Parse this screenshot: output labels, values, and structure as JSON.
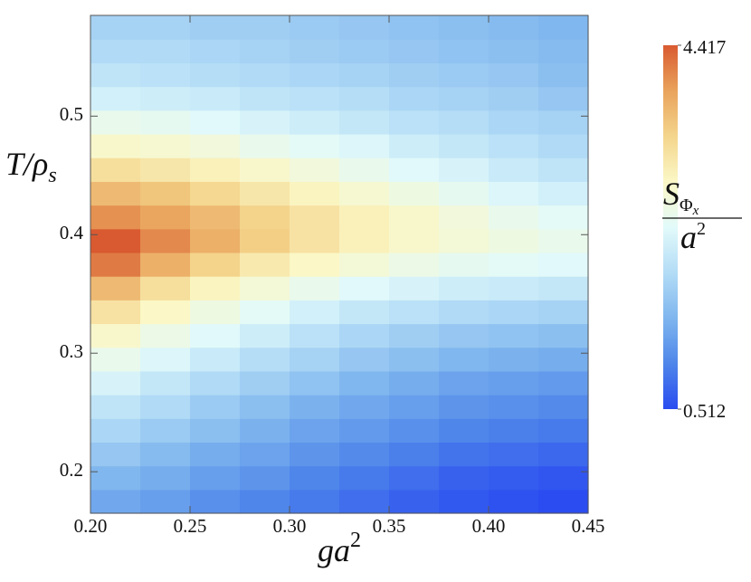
{
  "chart_data": {
    "type": "heatmap",
    "x_label": {
      "base": "ga",
      "sup": "2"
    },
    "y_label": {
      "base": "T/ρ",
      "sub": "s"
    },
    "colorbar_label": {
      "numerator": {
        "base": "S",
        "sub": "Φ",
        "subsub": "x"
      },
      "denominator": {
        "base": "a",
        "sup": "2"
      }
    },
    "xbins": [
      0.2,
      0.225,
      0.25,
      0.275,
      0.3,
      0.325,
      0.35,
      0.375,
      0.4,
      0.425,
      0.45
    ],
    "ybins": [
      0.165,
      0.185,
      0.205,
      0.225,
      0.245,
      0.265,
      0.285,
      0.305,
      0.325,
      0.345,
      0.365,
      0.385,
      0.405,
      0.425,
      0.445,
      0.465,
      0.485,
      0.505,
      0.525,
      0.545,
      0.565,
      0.585
    ],
    "z": [
      [
        1.35,
        1.25,
        1.1,
        1.0,
        0.9,
        0.8,
        0.7,
        0.62,
        0.56,
        0.512
      ],
      [
        1.5,
        1.4,
        1.25,
        1.15,
        1.0,
        0.9,
        0.8,
        0.7,
        0.65,
        0.6
      ],
      [
        1.7,
        1.55,
        1.4,
        1.3,
        1.15,
        1.05,
        0.95,
        0.85,
        0.8,
        0.75
      ],
      [
        1.9,
        1.75,
        1.6,
        1.45,
        1.3,
        1.2,
        1.1,
        1.0,
        0.95,
        0.9
      ],
      [
        2.1,
        1.95,
        1.75,
        1.6,
        1.45,
        1.35,
        1.25,
        1.15,
        1.1,
        1.05
      ],
      [
        2.35,
        2.15,
        1.95,
        1.8,
        1.65,
        1.5,
        1.4,
        1.3,
        1.25,
        1.2
      ],
      [
        2.6,
        2.4,
        2.2,
        2.0,
        1.85,
        1.7,
        1.6,
        1.5,
        1.45,
        1.4
      ],
      [
        2.9,
        2.65,
        2.45,
        2.25,
        2.05,
        1.9,
        1.8,
        1.7,
        1.65,
        1.6
      ],
      [
        3.25,
        2.95,
        2.7,
        2.5,
        2.3,
        2.15,
        2.05,
        1.95,
        1.9,
        1.85
      ],
      [
        3.7,
        3.3,
        3.0,
        2.8,
        2.6,
        2.45,
        2.35,
        2.25,
        2.2,
        2.15
      ],
      [
        4.2,
        3.8,
        3.45,
        3.15,
        2.95,
        2.8,
        2.65,
        2.55,
        2.5,
        2.45
      ],
      [
        4.417,
        4.1,
        3.8,
        3.5,
        3.25,
        3.05,
        2.9,
        2.8,
        2.7,
        2.6
      ],
      [
        4.05,
        3.9,
        3.7,
        3.45,
        3.25,
        3.05,
        2.9,
        2.75,
        2.6,
        2.5
      ],
      [
        3.7,
        3.6,
        3.4,
        3.2,
        3.0,
        2.85,
        2.7,
        2.55,
        2.4,
        2.3
      ],
      [
        3.3,
        3.2,
        3.05,
        2.9,
        2.75,
        2.6,
        2.45,
        2.35,
        2.2,
        2.1
      ],
      [
        2.9,
        2.85,
        2.75,
        2.6,
        2.5,
        2.4,
        2.25,
        2.15,
        2.05,
        1.95
      ],
      [
        2.6,
        2.55,
        2.45,
        2.35,
        2.25,
        2.15,
        2.05,
        2.0,
        1.9,
        1.85
      ],
      [
        2.3,
        2.25,
        2.2,
        2.1,
        2.05,
        2.0,
        1.9,
        1.85,
        1.8,
        1.7
      ],
      [
        2.1,
        2.05,
        2.0,
        1.95,
        1.9,
        1.85,
        1.8,
        1.75,
        1.7,
        1.6
      ],
      [
        1.95,
        1.95,
        1.9,
        1.85,
        1.8,
        1.75,
        1.7,
        1.65,
        1.6,
        1.55
      ],
      [
        1.85,
        1.85,
        1.8,
        1.8,
        1.75,
        1.7,
        1.65,
        1.6,
        1.55,
        1.5
      ]
    ],
    "xlim": [
      0.2,
      0.45
    ],
    "ylim": [
      0.165,
      0.585
    ],
    "xticks": [
      {
        "value": 0.2,
        "label": "0.20"
      },
      0.25,
      {
        "value": 0.3,
        "label": "0.30"
      },
      0.35,
      {
        "value": 0.4,
        "label": "0.40"
      },
      0.45
    ],
    "yticks": [
      0.2,
      0.3,
      0.4,
      0.5
    ],
    "zlim": [
      0.512,
      4.417
    ],
    "zticks": [
      0.512,
      4.417
    ],
    "colormap": [
      "#2a4cf0",
      "#4f86ea",
      "#7fb6ee",
      "#b3dcf6",
      "#e2fafa",
      "#fbf7c6",
      "#f4d58c",
      "#e9a35c",
      "#d95a30"
    ]
  }
}
